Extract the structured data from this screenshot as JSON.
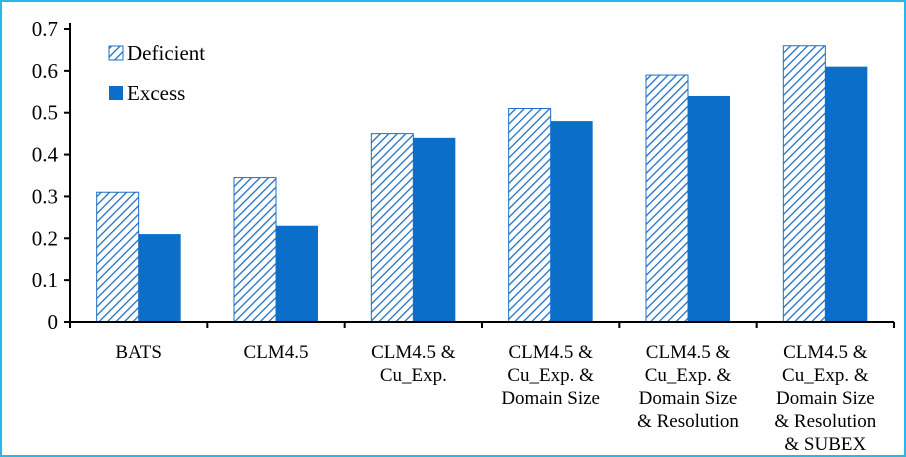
{
  "chart_data": {
    "type": "bar",
    "categories": [
      [
        "BATS"
      ],
      [
        "CLM4.5"
      ],
      [
        "CLM4.5 &",
        "Cu_Exp."
      ],
      [
        "CLM4.5 &",
        "Cu_Exp. &",
        "Domain Size"
      ],
      [
        "CLM4.5 &",
        "Cu_Exp. &",
        "Domain Size",
        "& Resolution"
      ],
      [
        "CLM4.5 &",
        "Cu_Exp. &",
        "Domain Size",
        "& Resolution",
        "& SUBEX"
      ]
    ],
    "series": [
      {
        "name": "Deficient",
        "values": [
          0.31,
          0.345,
          0.45,
          0.51,
          0.59,
          0.66
        ],
        "pattern": "diagonal-hatch",
        "color": "#1f6fc4"
      },
      {
        "name": "Excess",
        "values": [
          0.21,
          0.23,
          0.44,
          0.48,
          0.54,
          0.61
        ],
        "pattern": "solid",
        "color": "#0b6fc9"
      }
    ],
    "yticks": [
      "0",
      "0.1",
      "0.2",
      "0.3",
      "0.4",
      "0.5",
      "0.6",
      "0.7"
    ],
    "ylim": [
      0,
      0.7
    ],
    "title": "",
    "xlabel": "",
    "ylabel": "",
    "grid": false,
    "legend": "top-left",
    "colors": {
      "frame": "#29b6e8",
      "axis": "#000000"
    }
  }
}
